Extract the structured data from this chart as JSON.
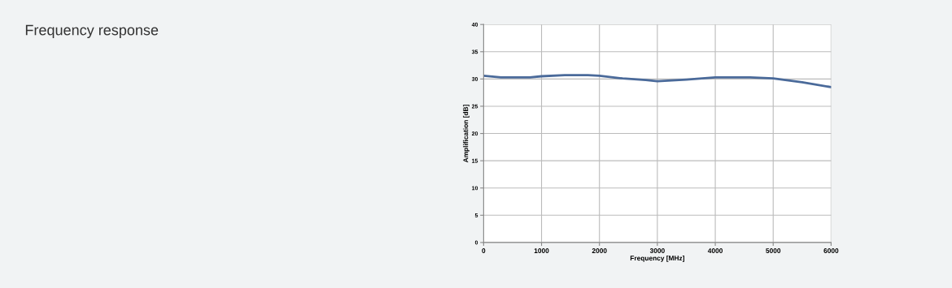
{
  "chart_data": {
    "type": "line",
    "title": "Frequency response",
    "xlabel": "Frequency [MHz]",
    "ylabel": "Amplification [dB]",
    "x": [
      0,
      300,
      800,
      1000,
      1400,
      1800,
      2000,
      2400,
      2800,
      3000,
      3500,
      4000,
      4600,
      5000,
      5500,
      6000
    ],
    "series": [
      {
        "color": "#4a6a9a",
        "values": [
          30.6,
          30.3,
          30.3,
          30.5,
          30.7,
          30.7,
          30.6,
          30.1,
          29.8,
          29.6,
          29.9,
          30.3,
          30.3,
          30.1,
          29.4,
          28.5
        ]
      }
    ],
    "xlim": [
      0,
      6000
    ],
    "xticks": [
      0,
      1000,
      2000,
      3000,
      4000,
      5000,
      6000
    ],
    "ylim": [
      0,
      40
    ],
    "yticks": [
      0,
      5,
      10,
      15,
      20,
      25,
      30,
      35,
      40
    ],
    "grid": true
  }
}
